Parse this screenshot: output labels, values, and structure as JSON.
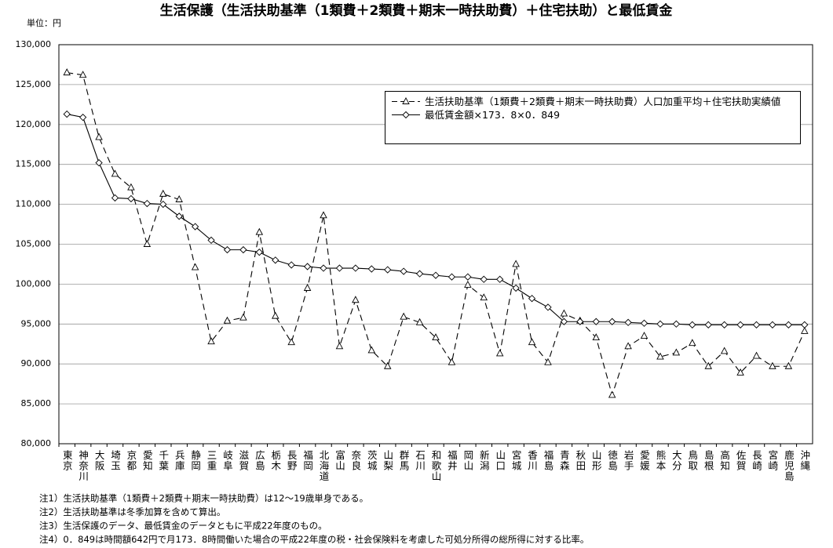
{
  "chart_data": {
    "type": "line",
    "title": "生活保護（生活扶助基準（1類費＋2類費＋期末一時扶助費）＋住宅扶助）と最低賃金",
    "y_unit": "単位：円",
    "categories": [
      "東京",
      "神奈川",
      "大阪",
      "埼玉",
      "京都",
      "愛知",
      "千葉",
      "兵庫",
      "静岡",
      "三重",
      "岐阜",
      "滋賀",
      "広島",
      "栃木",
      "長野",
      "福岡",
      "北海道",
      "富山",
      "奈良",
      "茨城",
      "山梨",
      "群馬",
      "石川",
      "和歌山",
      "福井",
      "岡山",
      "新潟",
      "山口",
      "宮城",
      "香川",
      "福島",
      "青森",
      "秋田",
      "山形",
      "徳島",
      "岩手",
      "愛媛",
      "熊本",
      "大分",
      "鳥取",
      "島根",
      "高知",
      "佐賀",
      "長崎",
      "宮崎",
      "鹿児島",
      "沖縄"
    ],
    "series": [
      {
        "name": "生活扶助基準（1類費＋2類費＋期末一時扶助費）人口加重平均＋住宅扶助実績値",
        "color": "#000000",
        "line_style": "dashed",
        "marker": "triangle",
        "values": [
          126500,
          126200,
          118400,
          113800,
          112100,
          105000,
          111300,
          110600,
          102100,
          92800,
          95400,
          95800,
          106500,
          96000,
          92700,
          99500,
          108600,
          92200,
          98000,
          91700,
          89700,
          95900,
          95200,
          93300,
          90200,
          99900,
          98300,
          91300,
          102500,
          92700,
          90200,
          96300,
          95400,
          93300,
          86100,
          92200,
          93500,
          90900,
          91400,
          92600,
          89700,
          91600,
          88900,
          91000,
          89700,
          89700,
          94100
        ]
      },
      {
        "name": "最低賃金額×173．8×0．849",
        "color": "#000000",
        "line_style": "solid",
        "marker": "diamond",
        "values": [
          121300,
          120900,
          115200,
          110800,
          110700,
          110100,
          110000,
          108500,
          107200,
          105500,
          104300,
          104300,
          104000,
          103000,
          102400,
          102200,
          102000,
          102000,
          102000,
          101900,
          101800,
          101600,
          101300,
          101100,
          100900,
          100900,
          100600,
          100600,
          99500,
          98200,
          97100,
          95300,
          95300,
          95300,
          95300,
          95200,
          95100,
          95000,
          95000,
          94900,
          94900,
          94900,
          94900,
          94900,
          94900,
          94900,
          94900
        ]
      }
    ],
    "ylim": [
      80000,
      130000
    ],
    "yticks": [
      {
        "value": 80000,
        "label": "80,000"
      },
      {
        "value": 85000,
        "label": "85,000"
      },
      {
        "value": 90000,
        "label": "90,000"
      },
      {
        "value": 95000,
        "label": "95,000"
      },
      {
        "value": 100000,
        "label": "100,000"
      },
      {
        "value": 105000,
        "label": "105,000"
      },
      {
        "value": 110000,
        "label": "110,000"
      },
      {
        "value": 115000,
        "label": "115,000"
      },
      {
        "value": 120000,
        "label": "120,000"
      },
      {
        "value": 125000,
        "label": "125,000"
      },
      {
        "value": 130000,
        "label": "130,000"
      }
    ],
    "grid": true,
    "legend_position": "top-right",
    "notes": [
      "注1）生活扶助基準（1類費＋2類費＋期末一時扶助費）は12～19歳単身である。",
      "注2）生活扶助基準は冬季加算を含めて算出。",
      "注3）生活保護のデータ、最低賃金のデータともに平成22年度のもの。",
      "注4）0．849は時間額642円で月173．8時間働いた場合の平成22年度の税・社会保険料を考慮した可処分所得の総所得に対する比率。"
    ]
  }
}
